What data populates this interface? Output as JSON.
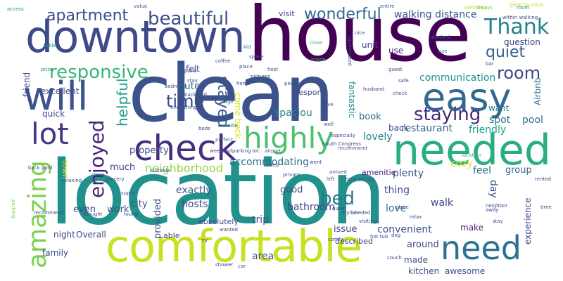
{
  "wordcloud": {
    "big": {
      "location": "location",
      "house": "house",
      "clean": "clean",
      "downtown": "downtown",
      "comfortable": "comfortable",
      "needed": "needed",
      "check": "check",
      "will": "will",
      "easy": "easy",
      "need": "need",
      "amazing": "amazing",
      "lot": "lot",
      "highly": "highly",
      "thank": "Thank",
      "beautiful": "beautiful",
      "wonderful": "wonderful",
      "responsive": "responsive",
      "apartment": "apartment",
      "enjoyed": "enjoyed",
      "staying": "staying",
      "room": "room",
      "quiet": "quiet",
      "time": "time",
      "bed": "bed",
      "stayed": "stayed",
      "helpful": "helpful"
    },
    "mid": {
      "neighborhood": "neighborhood",
      "accommodating": "accommodating",
      "walking_distance": "walking distance",
      "communication": "communication",
      "question": "question",
      "visit": "visit",
      "unit": "unit",
      "use": "use",
      "felt": "felt",
      "cute": "cute",
      "fantastic": "fantastic",
      "come_back": "come back",
      "spaciou": "spaciou",
      "want": "want",
      "spot": "spot",
      "pool": "pool",
      "friendly": "friendly",
      "restaurant": "restaurant",
      "back": "back",
      "lovely": "lovely",
      "book": "book",
      "plenty": "plenty",
      "cozy": "cozy",
      "feel": "feel",
      "group": "group",
      "amenitie": "amenitie",
      "property": "property",
      "much": "much",
      "town": "town",
      "exactly": "exactly",
      "good": "good",
      "thing": "thing",
      "walk": "walk",
      "day": "day",
      "bathroom": "bathroom",
      "city": "city",
      "hosts": "hosts",
      "work": "work",
      "provided": "provided",
      "trip": "trip",
      "love": "love",
      "make": "make",
      "experience": "experience",
      "even": "even",
      "area": "area",
      "issue": "issue",
      "convenient": "convenient",
      "around": "around",
      "night": "night",
      "overall": "Overall",
      "able": "able",
      "family": "family",
      "made": "made",
      "kitchen": "kitchen",
      "awesome": "awesome",
      "excellent": "excellent",
      "quick": "quick",
      "friend": "friend",
      "airbnb": "Airbnb",
      "respond": "respond",
      "described": "described",
      "absolutely": "absolutely"
    },
    "small": [
      "access",
      "value",
      "parking",
      "stocked",
      "definitely",
      "place",
      "location",
      "perfect",
      "recommend",
      "arrived",
      "entire",
      "nice",
      "size",
      "room",
      "drive",
      "coffee",
      "always",
      "kid",
      "close",
      "within walking",
      "great location",
      "stay",
      "home",
      "space",
      "inside",
      "appreciated",
      "bedroom",
      "check",
      "host",
      "pictures",
      "people",
      "large",
      "patio",
      "backyard",
      "safe",
      "everything",
      "beds",
      "outside",
      "weekend",
      "parking lot",
      "airport",
      "South Congress",
      "especially",
      "sleep",
      "went",
      "left",
      "easy access",
      "private",
      "found",
      "thought",
      "stylish",
      "visiting",
      "needed",
      "grocery",
      "clean",
      "super",
      "hot tub",
      "couch",
      "relax",
      "prize",
      "guest",
      "well",
      "husband",
      "place",
      "dog",
      "bar",
      "away",
      "neighbor",
      "stay",
      "back yard",
      "rented",
      "time",
      "recommend",
      "relaxing",
      "suitable",
      "wanted",
      "car",
      "shower",
      "TV",
      "quiet",
      "comfy",
      "table"
    ]
  },
  "colors": {
    "purple": "#440154",
    "indigo": "#3b528b",
    "blue": "#31688e",
    "teal": "#21918c",
    "green": "#35b779",
    "lime": "#90d743",
    "yellow": "#c8e020",
    "lightyellow": "#dde318"
  }
}
